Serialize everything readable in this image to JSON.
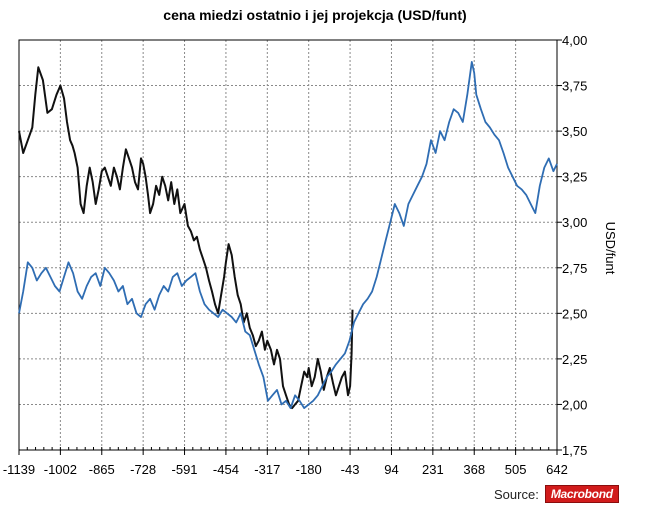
{
  "chart_data": {
    "type": "line",
    "title": "cena miedzi ostatnio i jej projekcja (USD/funt)",
    "ylabel": "USD/funt",
    "xlabel": "",
    "xlim": [
      -1139,
      642
    ],
    "ylim": [
      1.75,
      4.0
    ],
    "x_ticks": [
      -1139,
      -1002,
      -865,
      -728,
      -591,
      -454,
      -317,
      -180,
      -43,
      94,
      231,
      368,
      505,
      642
    ],
    "y_ticks": [
      "4,00",
      "3,75",
      "3,50",
      "3,25",
      "3,00",
      "2,75",
      "2,50",
      "2,25",
      "2,00",
      "1,75"
    ],
    "y_tick_values": [
      4.0,
      3.75,
      3.5,
      3.25,
      3.0,
      2.75,
      2.5,
      2.25,
      2.0,
      1.75
    ],
    "grid": true,
    "series": [
      {
        "name": "cena miedzi ostatnio",
        "color": "#111111",
        "x": [
          -1139,
          -1125,
          -1110,
          -1095,
          -1085,
          -1075,
          -1060,
          -1045,
          -1030,
          -1015,
          -1002,
          -990,
          -980,
          -970,
          -962,
          -955,
          -945,
          -935,
          -925,
          -915,
          -905,
          -895,
          -885,
          -875,
          -865,
          -855,
          -845,
          -835,
          -825,
          -815,
          -805,
          -795,
          -785,
          -775,
          -765,
          -755,
          -745,
          -735,
          -728,
          -720,
          -712,
          -705,
          -695,
          -685,
          -675,
          -665,
          -655,
          -645,
          -635,
          -625,
          -615,
          -605,
          -591,
          -580,
          -570,
          -560,
          -550,
          -540,
          -530,
          -520,
          -510,
          -500,
          -490,
          -480,
          -470,
          -460,
          -454,
          -445,
          -435,
          -425,
          -415,
          -405,
          -395,
          -385,
          -375,
          -365,
          -355,
          -345,
          -335,
          -325,
          -317,
          -305,
          -295,
          -285,
          -275,
          -265,
          -255,
          -245,
          -235,
          -225,
          -215,
          -205,
          -195,
          -185,
          -180,
          -170,
          -160,
          -150,
          -140,
          -130,
          -120,
          -110,
          -100,
          -90,
          -80,
          -70,
          -60,
          -50,
          -43,
          -38,
          -35
        ],
        "values": [
          3.5,
          3.38,
          3.45,
          3.52,
          3.7,
          3.85,
          3.78,
          3.6,
          3.62,
          3.7,
          3.75,
          3.68,
          3.55,
          3.45,
          3.42,
          3.38,
          3.3,
          3.1,
          3.05,
          3.2,
          3.3,
          3.22,
          3.1,
          3.18,
          3.28,
          3.3,
          3.25,
          3.2,
          3.3,
          3.25,
          3.18,
          3.3,
          3.4,
          3.35,
          3.3,
          3.22,
          3.18,
          3.35,
          3.32,
          3.25,
          3.15,
          3.05,
          3.1,
          3.2,
          3.15,
          3.25,
          3.2,
          3.12,
          3.22,
          3.1,
          3.18,
          3.05,
          3.1,
          2.98,
          2.95,
          2.9,
          2.92,
          2.85,
          2.8,
          2.75,
          2.68,
          2.62,
          2.55,
          2.5,
          2.6,
          2.7,
          2.78,
          2.88,
          2.82,
          2.7,
          2.6,
          2.55,
          2.45,
          2.5,
          2.42,
          2.38,
          2.32,
          2.35,
          2.4,
          2.3,
          2.35,
          2.3,
          2.22,
          2.3,
          2.25,
          2.1,
          2.05,
          2.0,
          1.98,
          2.0,
          2.02,
          2.1,
          2.18,
          2.15,
          2.2,
          2.1,
          2.15,
          2.25,
          2.18,
          2.08,
          2.15,
          2.2,
          2.12,
          2.05,
          2.1,
          2.15,
          2.18,
          2.05,
          2.1,
          2.28,
          2.52
        ]
      },
      {
        "name": "projekcja",
        "color": "#2f6db3",
        "x": [
          -1139,
          -1125,
          -1110,
          -1095,
          -1080,
          -1065,
          -1050,
          -1035,
          -1020,
          -1005,
          -990,
          -975,
          -960,
          -945,
          -930,
          -915,
          -900,
          -885,
          -870,
          -855,
          -840,
          -825,
          -810,
          -795,
          -780,
          -765,
          -750,
          -735,
          -720,
          -705,
          -690,
          -675,
          -660,
          -645,
          -630,
          -615,
          -600,
          -585,
          -570,
          -555,
          -540,
          -525,
          -510,
          -495,
          -480,
          -465,
          -450,
          -435,
          -420,
          -405,
          -390,
          -375,
          -360,
          -345,
          -330,
          -315,
          -300,
          -285,
          -270,
          -255,
          -240,
          -225,
          -210,
          -195,
          -180,
          -165,
          -150,
          -135,
          -120,
          -105,
          -90,
          -75,
          -60,
          -45,
          -30,
          -15,
          0,
          15,
          30,
          45,
          60,
          75,
          90,
          105,
          120,
          135,
          150,
          165,
          180,
          195,
          210,
          225,
          240,
          255,
          270,
          285,
          300,
          315,
          330,
          345,
          360,
          368,
          375,
          390,
          405,
          420,
          435,
          450,
          465,
          480,
          495,
          510,
          525,
          540,
          555,
          570,
          585,
          600,
          615,
          630,
          642
        ],
        "values": [
          2.5,
          2.62,
          2.78,
          2.75,
          2.68,
          2.72,
          2.75,
          2.7,
          2.65,
          2.62,
          2.7,
          2.78,
          2.72,
          2.62,
          2.58,
          2.65,
          2.7,
          2.72,
          2.65,
          2.75,
          2.72,
          2.68,
          2.62,
          2.65,
          2.55,
          2.58,
          2.5,
          2.48,
          2.55,
          2.58,
          2.52,
          2.6,
          2.65,
          2.62,
          2.7,
          2.72,
          2.65,
          2.68,
          2.7,
          2.72,
          2.62,
          2.55,
          2.52,
          2.5,
          2.48,
          2.52,
          2.5,
          2.48,
          2.45,
          2.5,
          2.4,
          2.38,
          2.3,
          2.22,
          2.15,
          2.02,
          2.05,
          2.08,
          2.0,
          2.02,
          1.98,
          2.05,
          2.02,
          1.98,
          2.0,
          2.02,
          2.05,
          2.1,
          2.15,
          2.18,
          2.22,
          2.25,
          2.28,
          2.35,
          2.45,
          2.5,
          2.55,
          2.58,
          2.62,
          2.7,
          2.8,
          2.9,
          3.0,
          3.1,
          3.05,
          2.98,
          3.1,
          3.15,
          3.2,
          3.25,
          3.32,
          3.45,
          3.38,
          3.5,
          3.45,
          3.55,
          3.62,
          3.6,
          3.55,
          3.7,
          3.88,
          3.82,
          3.7,
          3.62,
          3.55,
          3.52,
          3.48,
          3.45,
          3.38,
          3.3,
          3.25,
          3.2,
          3.18,
          3.15,
          3.1,
          3.05,
          3.2,
          3.3,
          3.35,
          3.28,
          3.32
        ]
      }
    ]
  },
  "source": {
    "label": "Source:",
    "brand": "Macrobond"
  }
}
